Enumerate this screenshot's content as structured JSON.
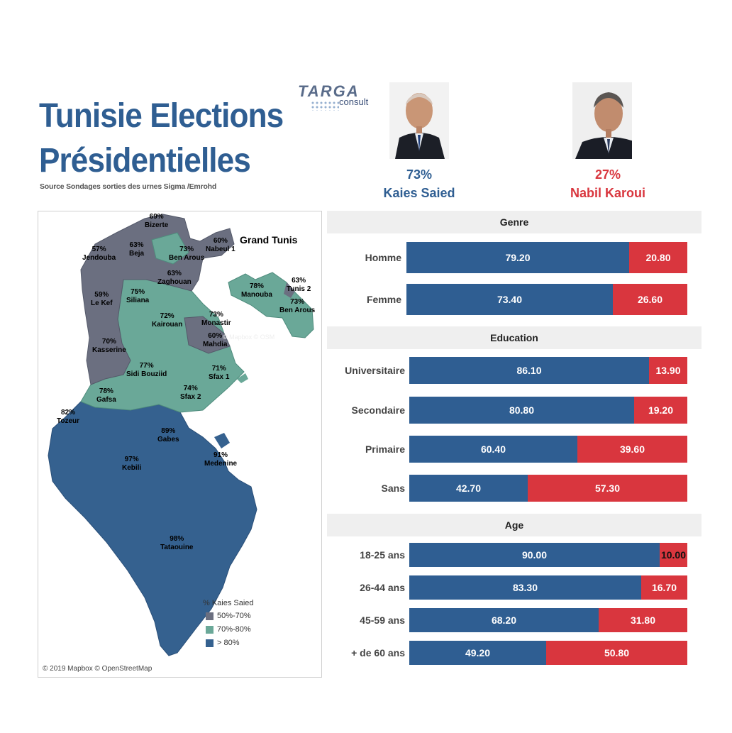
{
  "header": {
    "title_line1": "Tunisie Elections",
    "title_line2": "Présidentielles",
    "source": "Source Sondages sorties des urnes Sigma /Emrohd",
    "logo_main": "TARGA",
    "logo_sub": "consult"
  },
  "candidates": [
    {
      "pct": "73%",
      "name": "Kaies Saied",
      "color": "#2f5e92"
    },
    {
      "pct": "27%",
      "name": "Nabil Karoui",
      "color": "#d9363e"
    }
  ],
  "map": {
    "inset_title": "Grand Tunis",
    "attribution_inline": "© Mapbox © OSM",
    "copyright": "© 2019 Mapbox © OpenStreetMap",
    "legend_title": "% Kaies Saied",
    "legend": [
      {
        "label": "50%-70%",
        "color": "#6b6f80"
      },
      {
        "label": "70%-80%",
        "color": "#6aa898"
      },
      {
        "label": "> 80%",
        "color": "#35618f"
      }
    ],
    "regions": [
      {
        "pct": "69%",
        "name": "Bizerte"
      },
      {
        "pct": "57%",
        "name": "Jendouba"
      },
      {
        "pct": "63%",
        "name": "Beja"
      },
      {
        "pct": "73%",
        "name": "Ben Arous"
      },
      {
        "pct": "60%",
        "name": "Nabeul 1"
      },
      {
        "pct": "63%",
        "name": "Zaghouan"
      },
      {
        "pct": "59%",
        "name": "Le Kef"
      },
      {
        "pct": "75%",
        "name": "Siliana"
      },
      {
        "pct": "72%",
        "name": "Kairouan"
      },
      {
        "pct": "73%",
        "name": "Monastir"
      },
      {
        "pct": "60%",
        "name": "Mahdia"
      },
      {
        "pct": "70%",
        "name": "Kasserine"
      },
      {
        "pct": "77%",
        "name": "Sidi Bouziid"
      },
      {
        "pct": "71%",
        "name": "Sfax 1"
      },
      {
        "pct": "74%",
        "name": "Sfax 2"
      },
      {
        "pct": "78%",
        "name": "Gafsa"
      },
      {
        "pct": "82%",
        "name": "Tozeur"
      },
      {
        "pct": "89%",
        "name": "Gabes"
      },
      {
        "pct": "97%",
        "name": "Kebili"
      },
      {
        "pct": "91%",
        "name": "Medenine"
      },
      {
        "pct": "98%",
        "name": "Tataouine"
      }
    ],
    "inset_regions": [
      {
        "pct": "78%",
        "name": "Manouba"
      },
      {
        "pct": "63%",
        "name": "Tunis 2"
      },
      {
        "pct": "73%",
        "name": "Ben Arous"
      }
    ]
  },
  "chart_data": {
    "type": "bar",
    "orientation": "horizontal",
    "stacked": true,
    "xlim": [
      0,
      100
    ],
    "series": [
      {
        "name": "Kaies Saied",
        "color": "#2f5e92"
      },
      {
        "name": "Nabil Karoui",
        "color": "#d9363e"
      }
    ],
    "groups": [
      {
        "title": "Genre",
        "rows": [
          {
            "label": "Homme",
            "values": [
              79.2,
              20.8
            ],
            "text": [
              "79.20",
              "20.80"
            ]
          },
          {
            "label": "Femme",
            "values": [
              73.4,
              26.6
            ],
            "text": [
              "73.40",
              "26.60"
            ]
          }
        ]
      },
      {
        "title": "Education",
        "rows": [
          {
            "label": "Universitaire",
            "values": [
              86.1,
              13.9
            ],
            "text": [
              "86.10",
              "13.90"
            ]
          },
          {
            "label": "Secondaire",
            "values": [
              80.8,
              19.2
            ],
            "text": [
              "80.80",
              "19.20"
            ]
          },
          {
            "label": "Primaire",
            "values": [
              60.4,
              39.6
            ],
            "text": [
              "60.40",
              "39.60"
            ]
          },
          {
            "label": "Sans",
            "values": [
              42.7,
              57.3
            ],
            "text": [
              "42.70",
              "57.30"
            ]
          }
        ]
      },
      {
        "title": "Age",
        "rows": [
          {
            "label": "18-25 ans",
            "values": [
              90.0,
              10.0
            ],
            "text": [
              "90.00",
              "10.00"
            ]
          },
          {
            "label": "26-44 ans",
            "values": [
              83.3,
              16.7
            ],
            "text": [
              "83.30",
              "16.70"
            ]
          },
          {
            "label": "45-59 ans",
            "values": [
              68.2,
              31.8
            ],
            "text": [
              "68.20",
              "31.80"
            ]
          },
          {
            "label": "+ de 60 ans",
            "values": [
              49.2,
              50.8
            ],
            "text": [
              "49.20",
              "50.80"
            ]
          }
        ]
      }
    ]
  }
}
